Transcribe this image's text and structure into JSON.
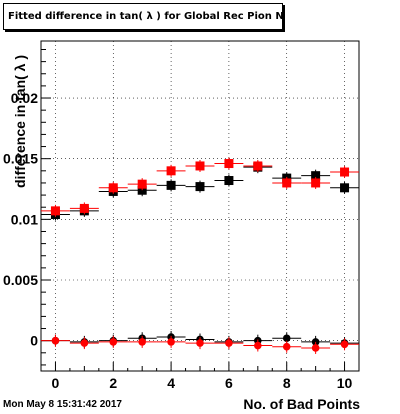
{
  "title": "Fitted difference in tan( λ ) for Global Rec Pion NoHits",
  "timestamp": "Mon May  8 15:31:42 2017",
  "chart_data": {
    "type": "scatter",
    "title": "Fitted difference in tan( λ ) for Global Rec Pion NoHits",
    "xlabel": "No. of Bad Points",
    "ylabel": "difference in tan( λ )",
    "xlim": [
      -0.5,
      10.5
    ],
    "ylim": [
      -0.0025,
      0.0247
    ],
    "x_ticks": [
      0,
      2,
      4,
      6,
      8,
      10
    ],
    "y_ticks": [
      0,
      0.005,
      0.01,
      0.015,
      0.02
    ],
    "y_tick_labels": [
      "0",
      "0.005",
      "0.01",
      "0.015",
      "0.02"
    ],
    "grid": true,
    "series": [
      {
        "marker": "square",
        "color": "#000000",
        "x": [
          0,
          1,
          2,
          3,
          4,
          5,
          6,
          7,
          8,
          9,
          10
        ],
        "values": [
          0.0104,
          0.0107,
          0.0123,
          0.0124,
          0.0128,
          0.0127,
          0.0132,
          0.0143,
          0.0134,
          0.0136,
          0.0126
        ]
      },
      {
        "marker": "square",
        "color": "#ff0000",
        "x": [
          0,
          1,
          2,
          3,
          4,
          5,
          6,
          7,
          8,
          9,
          10
        ],
        "values": [
          0.0107,
          0.0109,
          0.0126,
          0.0129,
          0.014,
          0.0144,
          0.0146,
          0.0144,
          0.013,
          0.013,
          0.0139
        ]
      },
      {
        "marker": "circle",
        "color": "#000000",
        "x": [
          0,
          1,
          2,
          3,
          4,
          5,
          6,
          7,
          8,
          9,
          10
        ],
        "values": [
          0.0,
          -0.0001,
          0.0,
          0.0002,
          0.0003,
          0.0001,
          -0.0001,
          0.0,
          0.0002,
          -0.0001,
          -0.0002
        ]
      },
      {
        "marker": "circle",
        "color": "#ff0000",
        "x": [
          0,
          1,
          2,
          3,
          4,
          5,
          6,
          7,
          8,
          9,
          10
        ],
        "values": [
          0.0,
          -0.0002,
          -0.0001,
          -0.0001,
          -0.0001,
          -0.0002,
          -0.0002,
          -0.0004,
          -0.0005,
          -0.0006,
          -0.0003
        ]
      }
    ]
  }
}
